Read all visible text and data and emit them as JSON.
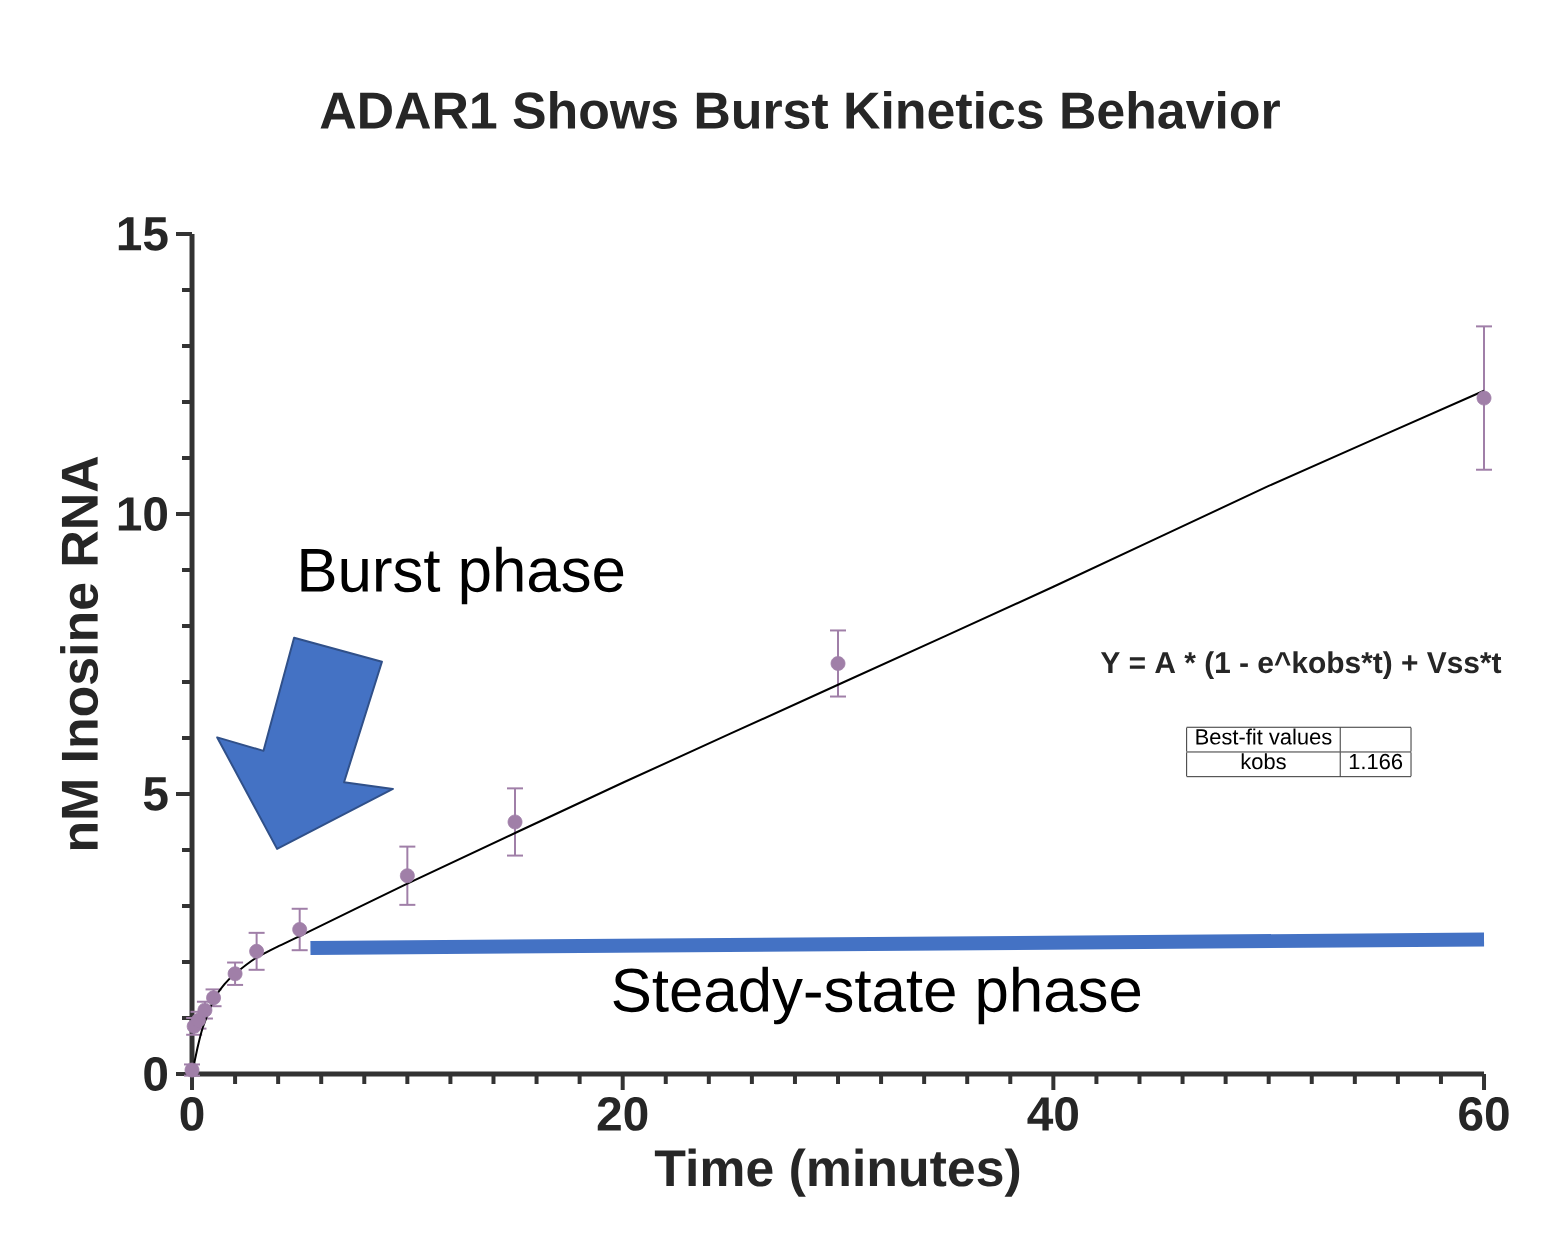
{
  "chart_data": {
    "type": "scatter",
    "title": "ADAR1 Shows Burst Kinetics Behavior",
    "xlabel": "Time (minutes)",
    "ylabel": "nM Inosine RNA",
    "xlim": [
      0,
      60
    ],
    "ylim": [
      0,
      15
    ],
    "xticks": [
      0,
      20,
      40,
      60
    ],
    "yticks": [
      0,
      5,
      10,
      15
    ],
    "series": [
      {
        "color": "#a07fa8",
        "marker": "circle",
        "x": [
          0,
          0.1,
          0.3,
          0.6,
          1,
          2,
          3,
          5,
          10,
          15,
          30,
          60
        ],
        "values": [
          0.07,
          0.85,
          0.96,
          1.14,
          1.36,
          1.79,
          2.19,
          2.58,
          3.54,
          4.5,
          7.33,
          12.07
        ],
        "errors": [
          0.1,
          0.15,
          0.15,
          0.15,
          0.15,
          0.2,
          0.33,
          0.37,
          0.52,
          0.6,
          0.59,
          1.28
        ]
      },
      {
        "type": "line",
        "marker": "none",
        "color": "#000000",
        "x": [
          0,
          0.25,
          0.5,
          1,
          1.5,
          2,
          3,
          4,
          5,
          10,
          20,
          30,
          40,
          50,
          60
        ],
        "values": [
          0,
          0.46,
          0.83,
          1.32,
          1.6,
          1.79,
          2.08,
          2.28,
          2.46,
          3.4,
          5.2,
          6.95,
          8.7,
          10.5,
          12.2
        ]
      },
      {
        "type": "line",
        "marker": "none",
        "color": "#4472c4",
        "x": [
          5.5,
          60
        ],
        "values": [
          2.25,
          2.4
        ]
      }
    ],
    "annotations": [
      "Burst phase",
      "Steady-state phase",
      "Y = A * (1 - e^kobs*t) + Vss*t",
      "Best-fit values",
      "kobs",
      "1.166"
    ]
  }
}
